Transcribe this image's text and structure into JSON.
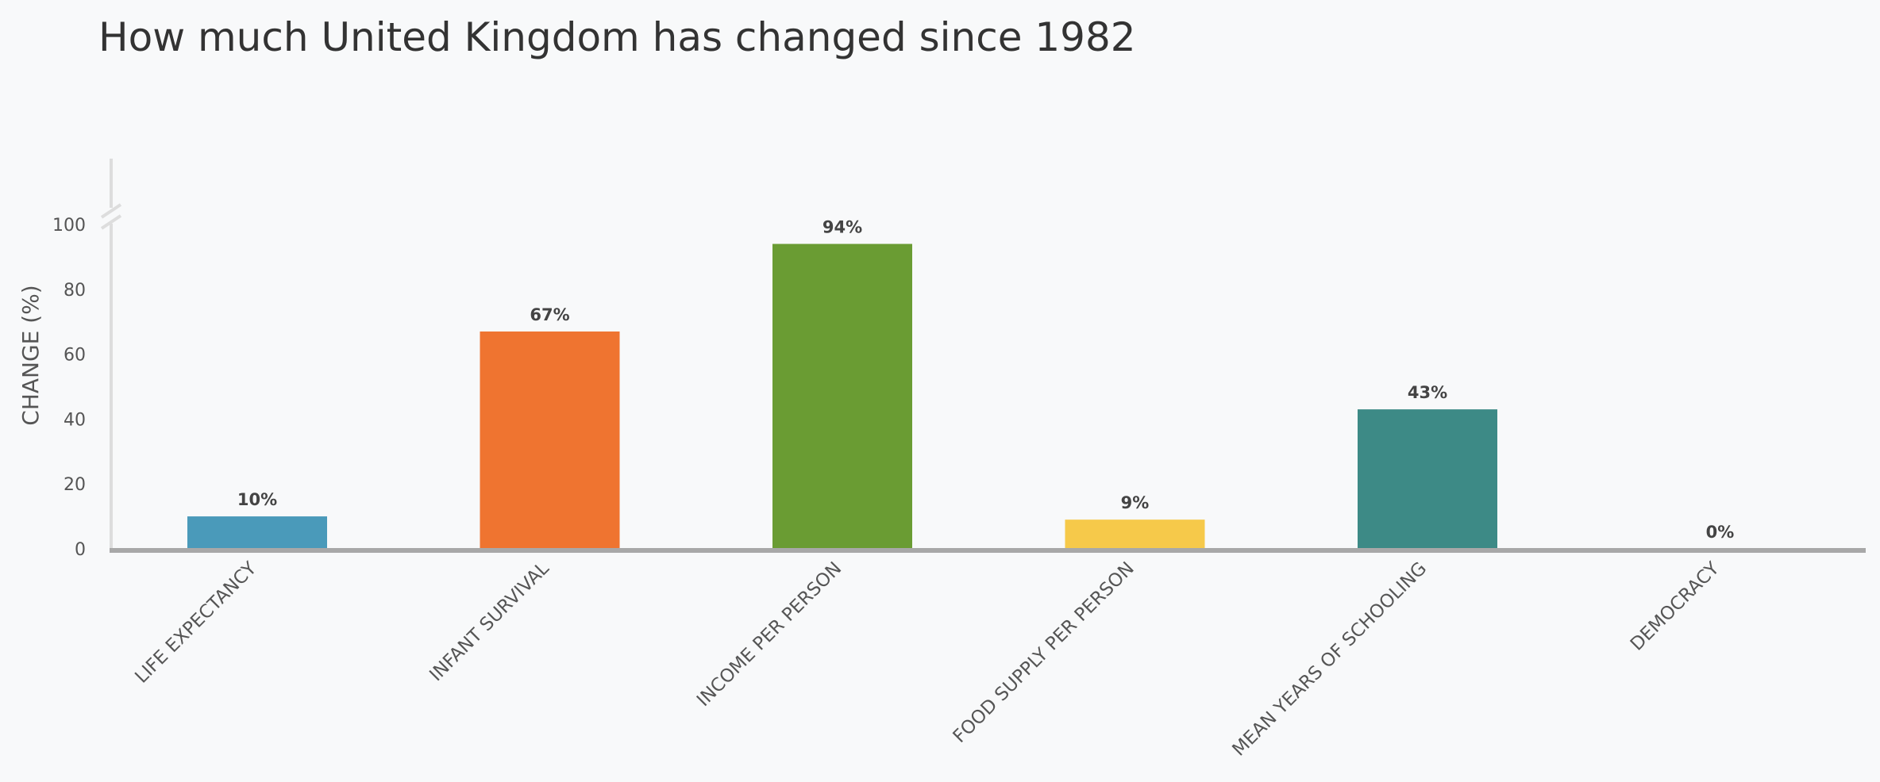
{
  "chart_data": {
    "type": "bar",
    "title": "How much United Kingdom has changed since 1982",
    "xlabel": "",
    "ylabel": "CHANGE (%)",
    "ylim": [
      0,
      100
    ],
    "yticks": [
      0,
      20,
      40,
      60,
      80,
      100
    ],
    "y_axis_break": true,
    "grid": false,
    "categories": [
      "LIFE EXPECTANCY",
      "INFANT SURVIVAL",
      "INCOME PER PERSON",
      "FOOD SUPPLY PER PERSON",
      "MEAN YEARS OF SCHOOLING",
      "DEMOCRACY"
    ],
    "values": [
      10,
      67,
      94,
      9,
      43,
      0
    ],
    "data_labels": [
      "10%",
      "67%",
      "94%",
      "9%",
      "43%",
      "0%"
    ],
    "colors": [
      "#4a9aba",
      "#ef7430",
      "#6a9c33",
      "#f6c94a",
      "#3d8a86",
      "#999999"
    ],
    "axis_color": "#a8a8a8"
  }
}
